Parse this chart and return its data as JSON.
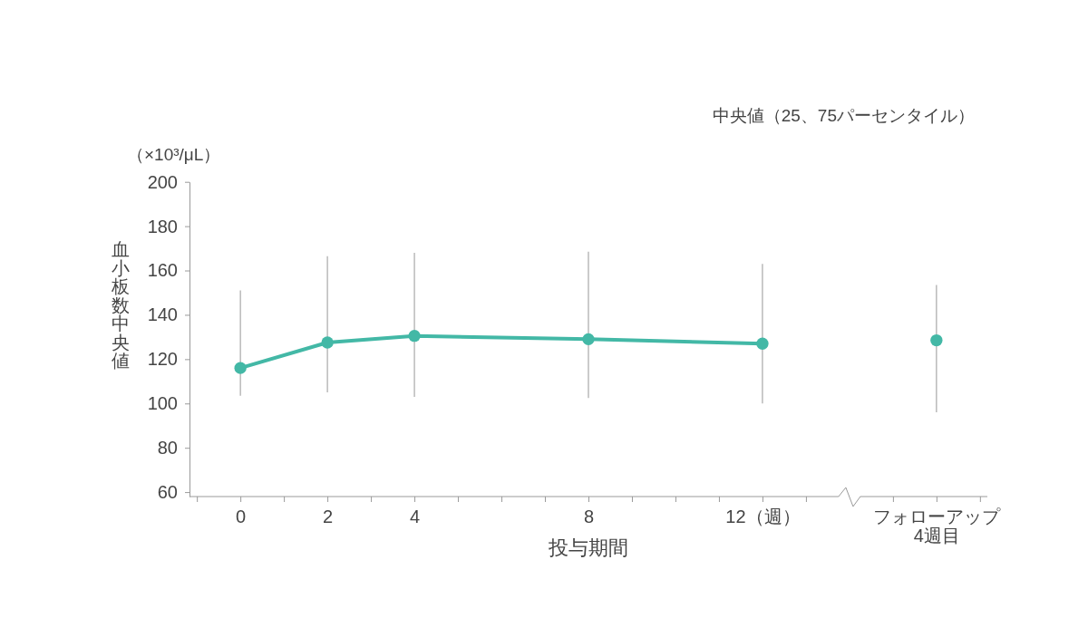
{
  "chart_data": {
    "type": "line",
    "xlabel": "投与期間",
    "ylabel": "血小板数中央値",
    "annotations": [
      "中央値（25、75パーセンタイル）",
      "（×10³/μL）"
    ],
    "xlim": [
      -1.17,
      17.17
    ],
    "xticks": [
      {
        "value": -1,
        "label": null
      },
      0,
      {
        "value": 1,
        "label": null
      },
      2,
      {
        "value": 3,
        "label": null
      },
      4,
      {
        "value": 5,
        "label": null
      },
      {
        "value": 6,
        "label": null
      },
      {
        "value": 7,
        "label": null
      },
      8,
      {
        "value": 9,
        "label": null
      },
      {
        "value": 10,
        "label": null
      },
      {
        "value": 11,
        "label": null
      },
      {
        "value": 12,
        "label": "12（週）"
      },
      {
        "value": 13,
        "label": null
      },
      {
        "value": 15,
        "label": null
      },
      {
        "value": 16,
        "label": "フォローアップ\n4週目"
      },
      {
        "value": 17,
        "label": null
      }
    ],
    "ylim": [
      58,
      200
    ],
    "yticks": [
      60,
      80,
      100,
      120,
      140,
      160,
      180,
      200
    ],
    "marker": "circle",
    "line_style": "solid",
    "series": [
      {
        "type": "line",
        "color": "#43b8a6",
        "x": [
          0,
          2,
          4,
          8,
          12
        ],
        "values": [
          116,
          127.5,
          130.5,
          129,
          127
        ],
        "errors": [
          [
            103.5,
            151
          ],
          [
            105,
            166.5
          ],
          [
            103,
            168
          ],
          [
            102.5,
            168.5
          ],
          [
            100,
            163
          ]
        ]
      },
      {
        "type": "scatter",
        "color": "#43b8a6",
        "x": [
          16
        ],
        "values": [
          128.5
        ],
        "errors": [
          [
            96,
            153.5
          ]
        ]
      }
    ]
  }
}
